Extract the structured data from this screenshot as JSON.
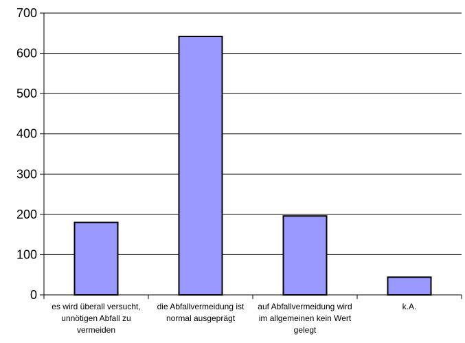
{
  "chart_data": {
    "type": "bar",
    "categories": [
      [
        "es wird überall versucht,",
        "unnötigen Abfall zu",
        "vermeiden"
      ],
      [
        "die Abfallvermeidung ist",
        "normal ausgeprägt"
      ],
      [
        "auf Abfallvermeidung wird",
        "im allgemeinen kein Wert",
        "gelegt"
      ],
      [
        "k.A."
      ]
    ],
    "values": [
      180,
      642,
      196,
      44
    ],
    "ylim": [
      0,
      700
    ],
    "yticks": [
      0,
      100,
      200,
      300,
      400,
      500,
      600,
      700
    ],
    "grid": true,
    "legend": "none",
    "title": "",
    "xlabel": "",
    "ylabel": "",
    "colors": {
      "bar": "#9999ff",
      "bar_edge": "#000000",
      "grid": "#000000",
      "axis": "#000000"
    }
  }
}
